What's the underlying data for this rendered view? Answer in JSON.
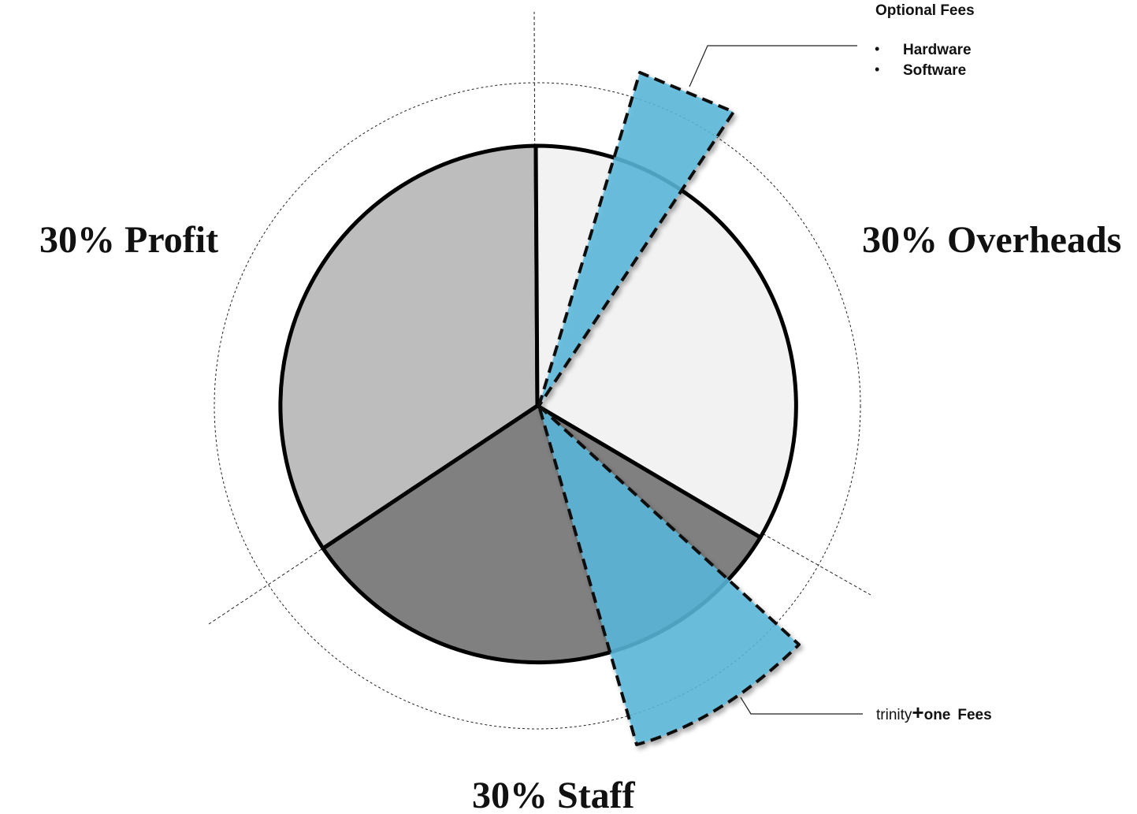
{
  "labels": {
    "profit": "30% Profit",
    "overheads": "30% Overheads",
    "staff": "30% Staff"
  },
  "callouts": {
    "optional_fees": {
      "title": "Optional Fees",
      "items": [
        "Hardware",
        "Software"
      ]
    },
    "trinity_fees": {
      "prefix": "trinity",
      "plus": "+",
      "brand": "one",
      "suffix": "Fees"
    }
  },
  "colors": {
    "profit": "#bdbdbd",
    "overheads": "#f2f2f2",
    "staff": "#808080",
    "fee_wedge": "#5bb8dc",
    "outline": "#000000"
  },
  "segments": [
    {
      "name": "profit",
      "share_percent": 30
    },
    {
      "name": "overheads",
      "share_percent": 30
    },
    {
      "name": "staff",
      "share_percent": 30
    }
  ]
}
